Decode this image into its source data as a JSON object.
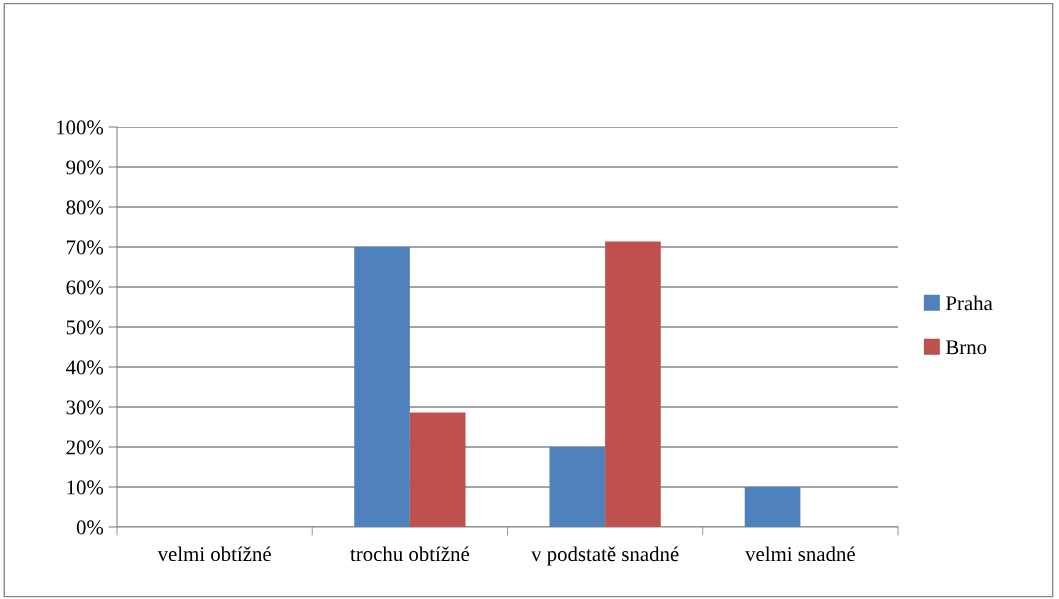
{
  "chart_data": {
    "type": "bar",
    "categories": [
      "velmi obtížné",
      "trochu obtížné",
      "v podstatě snadné",
      "velmi snadné"
    ],
    "series": [
      {
        "name": "Praha",
        "color": "#4f81bd",
        "values": [
          0,
          70,
          20,
          10
        ]
      },
      {
        "name": "Brno",
        "color": "#c0504d",
        "values": [
          0,
          28.6,
          71.4,
          0
        ]
      }
    ],
    "ylim": [
      0,
      100
    ],
    "yticks": [
      {
        "value": 0,
        "label": "0%"
      },
      {
        "value": 10,
        "label": "10%"
      },
      {
        "value": 20,
        "label": "20%"
      },
      {
        "value": 30,
        "label": "30%"
      },
      {
        "value": 40,
        "label": "40%"
      },
      {
        "value": 50,
        "label": "50%"
      },
      {
        "value": 60,
        "label": "60%"
      },
      {
        "value": 70,
        "label": "70%"
      },
      {
        "value": 80,
        "label": "80%"
      },
      {
        "value": 90,
        "label": "90%"
      },
      {
        "value": 100,
        "label": "100%"
      }
    ],
    "grid": "y",
    "legend": "right"
  }
}
